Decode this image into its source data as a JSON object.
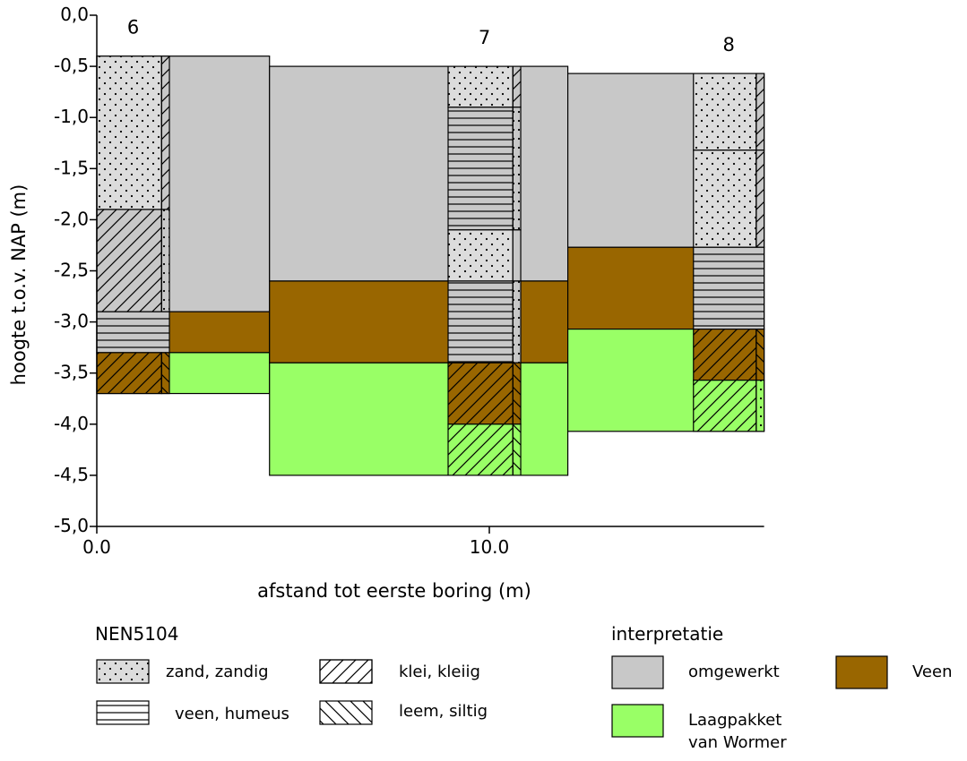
{
  "chart_data": {
    "type": "boring-profile",
    "xlabel": "afstand tot eerste boring (m)",
    "ylabel": "hoogte t.o.v. NAP (m)",
    "xlim": [
      0,
      17
    ],
    "ylim": [
      -5.0,
      0.0
    ],
    "x_ticks": [
      {
        "value": 0,
        "label": "0.0"
      },
      {
        "value": 10,
        "label": "10.0"
      }
    ],
    "y_ticks": [
      {
        "value": 0.0,
        "label": "0,0"
      },
      {
        "value": -0.5,
        "label": "-0,5"
      },
      {
        "value": -1.0,
        "label": "-1,0"
      },
      {
        "value": -1.5,
        "label": "-1,5"
      },
      {
        "value": -2.0,
        "label": "-2,0"
      },
      {
        "value": -2.5,
        "label": "-2,5"
      },
      {
        "value": -3.0,
        "label": "-3,0"
      },
      {
        "value": -3.5,
        "label": "-3,5"
      },
      {
        "value": -4.0,
        "label": "-4,0"
      },
      {
        "value": -4.5,
        "label": "-4,5"
      },
      {
        "value": -5.0,
        "label": "-5,0"
      }
    ],
    "interpretation_colors": {
      "omgewerkt": "#c8c8c8",
      "veen": "#996600",
      "wormer": "#99ff66"
    },
    "borings": [
      {
        "id": "6",
        "x": 0,
        "col_width": 1.85,
        "strip_width": 0.2,
        "inter_x0": 0,
        "inter_x1": 4.4,
        "interpretation": [
          {
            "top": -0.4,
            "bottom": -2.9,
            "unit": "omgewerkt"
          },
          {
            "top": -2.9,
            "bottom": -3.3,
            "unit": "veen"
          },
          {
            "top": -3.3,
            "bottom": -3.7,
            "unit": "wormer"
          }
        ],
        "layers": [
          {
            "top": -0.4,
            "bottom": -1.9,
            "main": "zand",
            "admix": "klei"
          },
          {
            "top": -1.9,
            "bottom": -2.9,
            "main": "klei",
            "admix": "zand"
          },
          {
            "top": -2.9,
            "bottom": -3.3,
            "main": "veen",
            "admix": "geen"
          },
          {
            "top": -3.3,
            "bottom": -3.7,
            "main": "klei",
            "admix": "leem"
          }
        ]
      },
      {
        "id": "7",
        "x": 8.95,
        "col_width": 1.85,
        "strip_width": 0.2,
        "inter_x0": 4.4,
        "inter_x1": 12.0,
        "interpretation": [
          {
            "top": -0.5,
            "bottom": -2.6,
            "unit": "omgewerkt"
          },
          {
            "top": -2.6,
            "bottom": -3.4,
            "unit": "veen"
          },
          {
            "top": -3.4,
            "bottom": -4.5,
            "unit": "wormer"
          }
        ],
        "layers": [
          {
            "top": -0.5,
            "bottom": -0.9,
            "main": "zand",
            "admix": "klei"
          },
          {
            "top": -0.9,
            "bottom": -2.1,
            "main": "veen",
            "admix": "zand"
          },
          {
            "top": -2.1,
            "bottom": -2.6,
            "main": "zand",
            "admix": "omgewerkt"
          },
          {
            "top": -2.6,
            "bottom": -3.4,
            "main": "veen",
            "admix": "zand"
          },
          {
            "top": -3.4,
            "bottom": -4.0,
            "main": "klei",
            "admix": "leem"
          },
          {
            "top": -4.0,
            "bottom": -4.5,
            "main": "klei",
            "admix": "leem"
          }
        ]
      },
      {
        "id": "8",
        "x": 15.2,
        "col_width": 1.8,
        "strip_width": 0.2,
        "inter_x0": 12.0,
        "inter_x1": 17.0,
        "interpretation": [
          {
            "top": -0.57,
            "bottom": -2.27,
            "unit": "omgewerkt"
          },
          {
            "top": -2.27,
            "bottom": -3.07,
            "unit": "veen"
          },
          {
            "top": -3.07,
            "bottom": -4.07,
            "unit": "wormer"
          }
        ],
        "layers": [
          {
            "top": -0.57,
            "bottom": -1.32,
            "main": "zand",
            "admix": "klei"
          },
          {
            "top": -1.32,
            "bottom": -2.27,
            "main": "zand",
            "admix": "klei"
          },
          {
            "top": -2.27,
            "bottom": -3.07,
            "main": "veen",
            "admix": "geen"
          },
          {
            "top": -3.07,
            "bottom": -3.57,
            "main": "klei",
            "admix": "leem"
          },
          {
            "top": -3.57,
            "bottom": -4.07,
            "main": "klei",
            "admix": "zand"
          }
        ]
      }
    ]
  },
  "legend": {
    "nen_title": "NEN5104",
    "nen_items": [
      {
        "pattern": "zand",
        "label": "zand, zandig"
      },
      {
        "pattern": "klei",
        "label": "klei, kleiig"
      },
      {
        "pattern": "veen",
        "label": "veen, humeus"
      },
      {
        "pattern": "leem",
        "label": "leem, siltig"
      }
    ],
    "interp_title": "interpretatie",
    "interp_items": [
      {
        "unit": "omgewerkt",
        "label": "omgewerkt"
      },
      {
        "unit": "veen",
        "label": "Veen"
      },
      {
        "unit": "wormer",
        "label_line1": "Laagpakket",
        "label_line2": "van Wormer"
      }
    ]
  }
}
